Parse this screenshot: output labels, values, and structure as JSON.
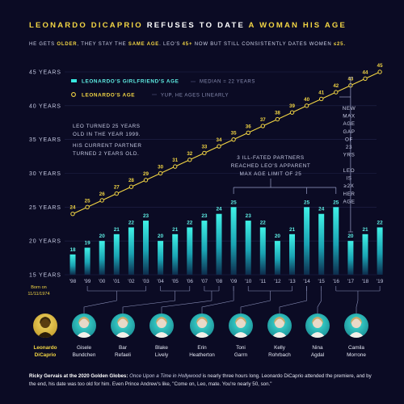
{
  "header": {
    "title_part1": "LEONARDO DICAPRIO",
    "title_part2": "REFUSES TO DATE",
    "title_part3": "A WOMAN HIS AGE",
    "subtitle_a": "HE GETS",
    "subtitle_b": "OLDER",
    "subtitle_c": ", THEY STAY THE",
    "subtitle_d": "SAME AGE",
    "subtitle_e": ". LEO'S",
    "subtitle_f": "45+",
    "subtitle_g": "NOW BUT STILL CONSISTENTLY DATES WOMEN",
    "subtitle_h": "≤25."
  },
  "legend": {
    "girlfriend_label": "LEONARDO'S GIRLFRIEND'S AGE",
    "girlfriend_note": "MEDIAN = 22 YEARS",
    "leo_label": "LEONARDO'S AGE",
    "leo_note": "YUP, HE AGES LINEARLY"
  },
  "annotations": {
    "turned25_line1": "LEO TURNED 25 YEARS",
    "turned25_line2": "OLD IN THE YEAR 1999.",
    "current_line1": "HIS CURRENT PARTNER",
    "current_line2": "TURNED 2 YEARS OLD.",
    "ill_fated_line1": "3 ILL-FATED PARTNERS",
    "ill_fated_line2": "REACHED LEO'S APPARENT",
    "ill_fated_line3": "MAX AGE LIMIT OF 25",
    "gap_lines": [
      "NEW",
      "MAX",
      "AGE",
      "GAP",
      "OF",
      "23",
      "YRS"
    ],
    "ratio_lines": [
      "LEO",
      "IS",
      "≥2X",
      "HER",
      "AGE"
    ]
  },
  "colors": {
    "background": "#0b0b24",
    "leo_line": "#f2d544",
    "bar_top": "#38e8e0",
    "bar_bottom": "#0b2a4a",
    "accent_teal": "#2fd4cc"
  },
  "chart_data": {
    "type": "bar",
    "categories": [
      "'98",
      "'99",
      "'00",
      "'01",
      "'02",
      "'03",
      "'04",
      "'05",
      "'06",
      "'07",
      "'08",
      "'09",
      "'10",
      "'11",
      "'12",
      "'13",
      "'14",
      "'15",
      "'16",
      "'17",
      "'18",
      "'19"
    ],
    "series": [
      {
        "name": "LEONARDO'S GIRLFRIEND'S AGE",
        "type": "bar",
        "values": [
          18,
          19,
          20,
          21,
          22,
          23,
          20,
          21,
          22,
          23,
          24,
          25,
          23,
          22,
          20,
          21,
          25,
          24,
          25,
          20,
          21,
          22
        ]
      },
      {
        "name": "LEONARDO'S AGE",
        "type": "line",
        "values": [
          24,
          25,
          26,
          27,
          28,
          29,
          30,
          31,
          32,
          33,
          34,
          35,
          36,
          37,
          38,
          39,
          40,
          41,
          42,
          43,
          44,
          45
        ]
      }
    ],
    "ylim": [
      15,
      45
    ],
    "y_ticks": [
      "15 YEARS",
      "20 YEARS",
      "25 YEARS",
      "30 YEARS",
      "35 YEARS",
      "40 YEARS",
      "45 YEARS"
    ],
    "grid": true,
    "legend_position": "top-left"
  },
  "partners": [
    {
      "first": "Leonardo",
      "last": "DiCaprio",
      "born_line1": "Born on",
      "born_line2": "11/11/1974"
    },
    {
      "first": "Gisele",
      "last": "Bundchen"
    },
    {
      "first": "Bar",
      "last": "Refaeli"
    },
    {
      "first": "Blake",
      "last": "Lively"
    },
    {
      "first": "Erin",
      "last": "Heatherton"
    },
    {
      "first": "Toni",
      "last": "Garrn"
    },
    {
      "first": "Kelly",
      "last": "Rohrbach"
    },
    {
      "first": "Nina",
      "last": "Agdal"
    },
    {
      "first": "Camila",
      "last": "Morrone"
    }
  ],
  "footer": {
    "speaker": "Ricky Gervais at the 2020 Golden Globes:",
    "quote_title": "Once Upon a Time in Hollywood",
    "quote_text": "is nearly three hours long. Leonardo DiCaprio attended the premiere, and by the end, his date was too old for him.  Even Prince Andrew's like, \"Come on, Leo, mate. You're nearly 50, son.\""
  }
}
